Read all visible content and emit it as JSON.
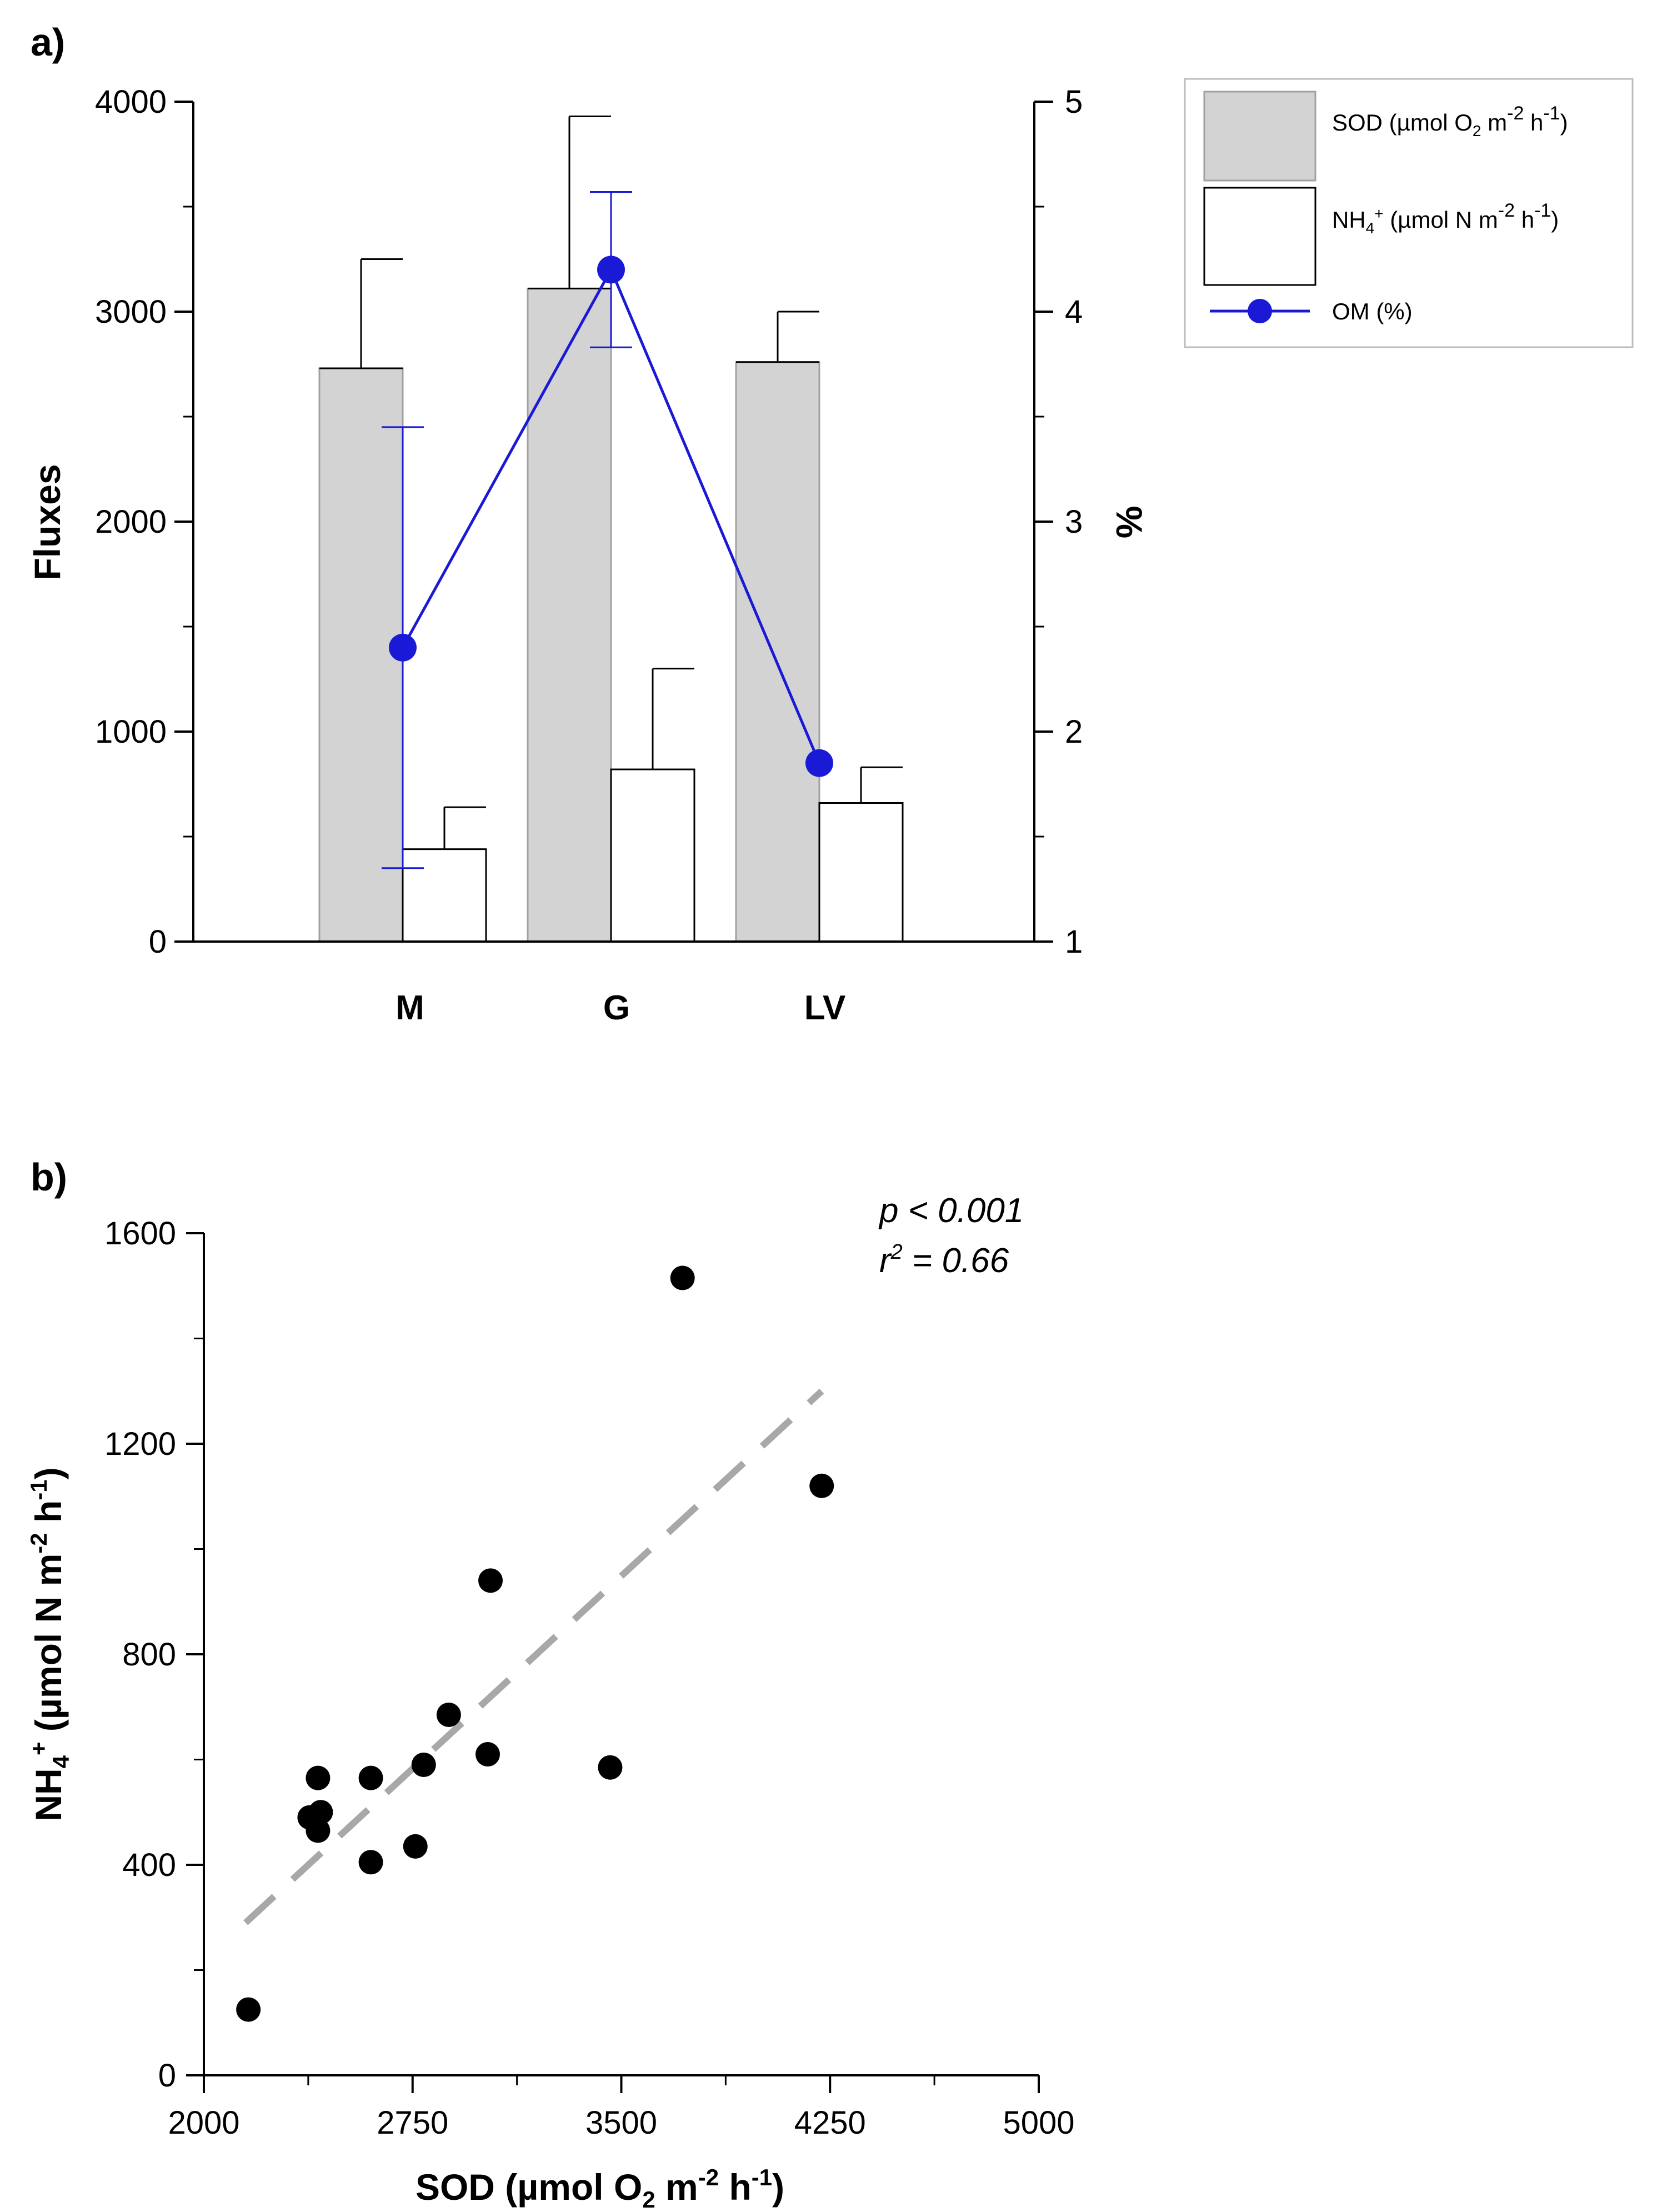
{
  "chart_data": [
    {
      "panel": "a)",
      "type": "bar",
      "categories": [
        "M",
        "G",
        "LV"
      ],
      "series": [
        {
          "name": "SOD",
          "legend": {
            "pre": "SOD (µmol O",
            "sub": "2",
            "mid": " m",
            "sup": "-2",
            "post": " h",
            "sup2": "-1",
            "end": ")"
          },
          "values": [
            2730,
            3110,
            2760
          ],
          "errors": [
            520,
            820,
            240
          ],
          "color": "#d3d3d3"
        },
        {
          "name": "NH4+",
          "legend": {
            "pre": "NH",
            "sub": "4",
            "sup0": "+",
            "mid": " (µmol N m",
            "sup": "-2",
            "post": " h",
            "sup2": "-1",
            "end": ")"
          },
          "values": [
            440,
            820,
            660
          ],
          "errors": [
            200,
            480,
            170
          ],
          "color": "#ffffff"
        },
        {
          "name": "OM (%)",
          "legend_label": "OM (%)",
          "axis": "right",
          "values": [
            2.4,
            4.2,
            1.85
          ],
          "errors": [
            1.05,
            0.37,
            0.0
          ],
          "color": "#1a1ad6"
        }
      ],
      "ylabel": "Fluxes",
      "ylim": [
        0,
        4000
      ],
      "yticks": [
        "0",
        "1000",
        "2000",
        "3000",
        "4000"
      ],
      "y2label": "%",
      "y2lim": [
        1,
        5
      ],
      "y2ticks": [
        "1",
        "2",
        "3",
        "4",
        "5"
      ],
      "legend_position": "top-right, outside plot"
    },
    {
      "panel": "b)",
      "type": "scatter",
      "points": [
        {
          "x": 2160,
          "y": 125
        },
        {
          "x": 2380,
          "y": 490
        },
        {
          "x": 2410,
          "y": 565
        },
        {
          "x": 2420,
          "y": 500
        },
        {
          "x": 2410,
          "y": 465
        },
        {
          "x": 2600,
          "y": 565
        },
        {
          "x": 2600,
          "y": 405
        },
        {
          "x": 2760,
          "y": 435
        },
        {
          "x": 2790,
          "y": 590
        },
        {
          "x": 2880,
          "y": 685
        },
        {
          "x": 3020,
          "y": 610
        },
        {
          "x": 3030,
          "y": 940
        },
        {
          "x": 3460,
          "y": 585
        },
        {
          "x": 3720,
          "y": 1515
        },
        {
          "x": 4220,
          "y": 1120
        }
      ],
      "trendline": {
        "x": [
          2150,
          4220
        ],
        "y": [
          290,
          1300
        ],
        "style": "dashed",
        "color": "#a8a8a8"
      },
      "xlabel": {
        "pre": "SOD (µmol O",
        "sub": "2",
        "mid": " m",
        "sup": "-2",
        "post": " h",
        "sup2": "-1",
        "end": ")"
      },
      "ylabel": {
        "pre": "NH",
        "sub": "4",
        "sup0": "+",
        "mid": " (µmol N m",
        "sup": "-2",
        "post": " h",
        "sup2": "-1",
        "end": ")"
      },
      "xlim": [
        2000,
        5000
      ],
      "xticks": [
        "2000",
        "2750",
        "3500",
        "4250",
        "5000"
      ],
      "ylim": [
        0,
        1600
      ],
      "yticks": [
        "0",
        "400",
        "800",
        "1200",
        "1600"
      ],
      "annotations": {
        "p": "p < 0.001",
        "r_pre": "r",
        "r_sup": "2",
        "r_post": " = 0.66"
      }
    }
  ]
}
